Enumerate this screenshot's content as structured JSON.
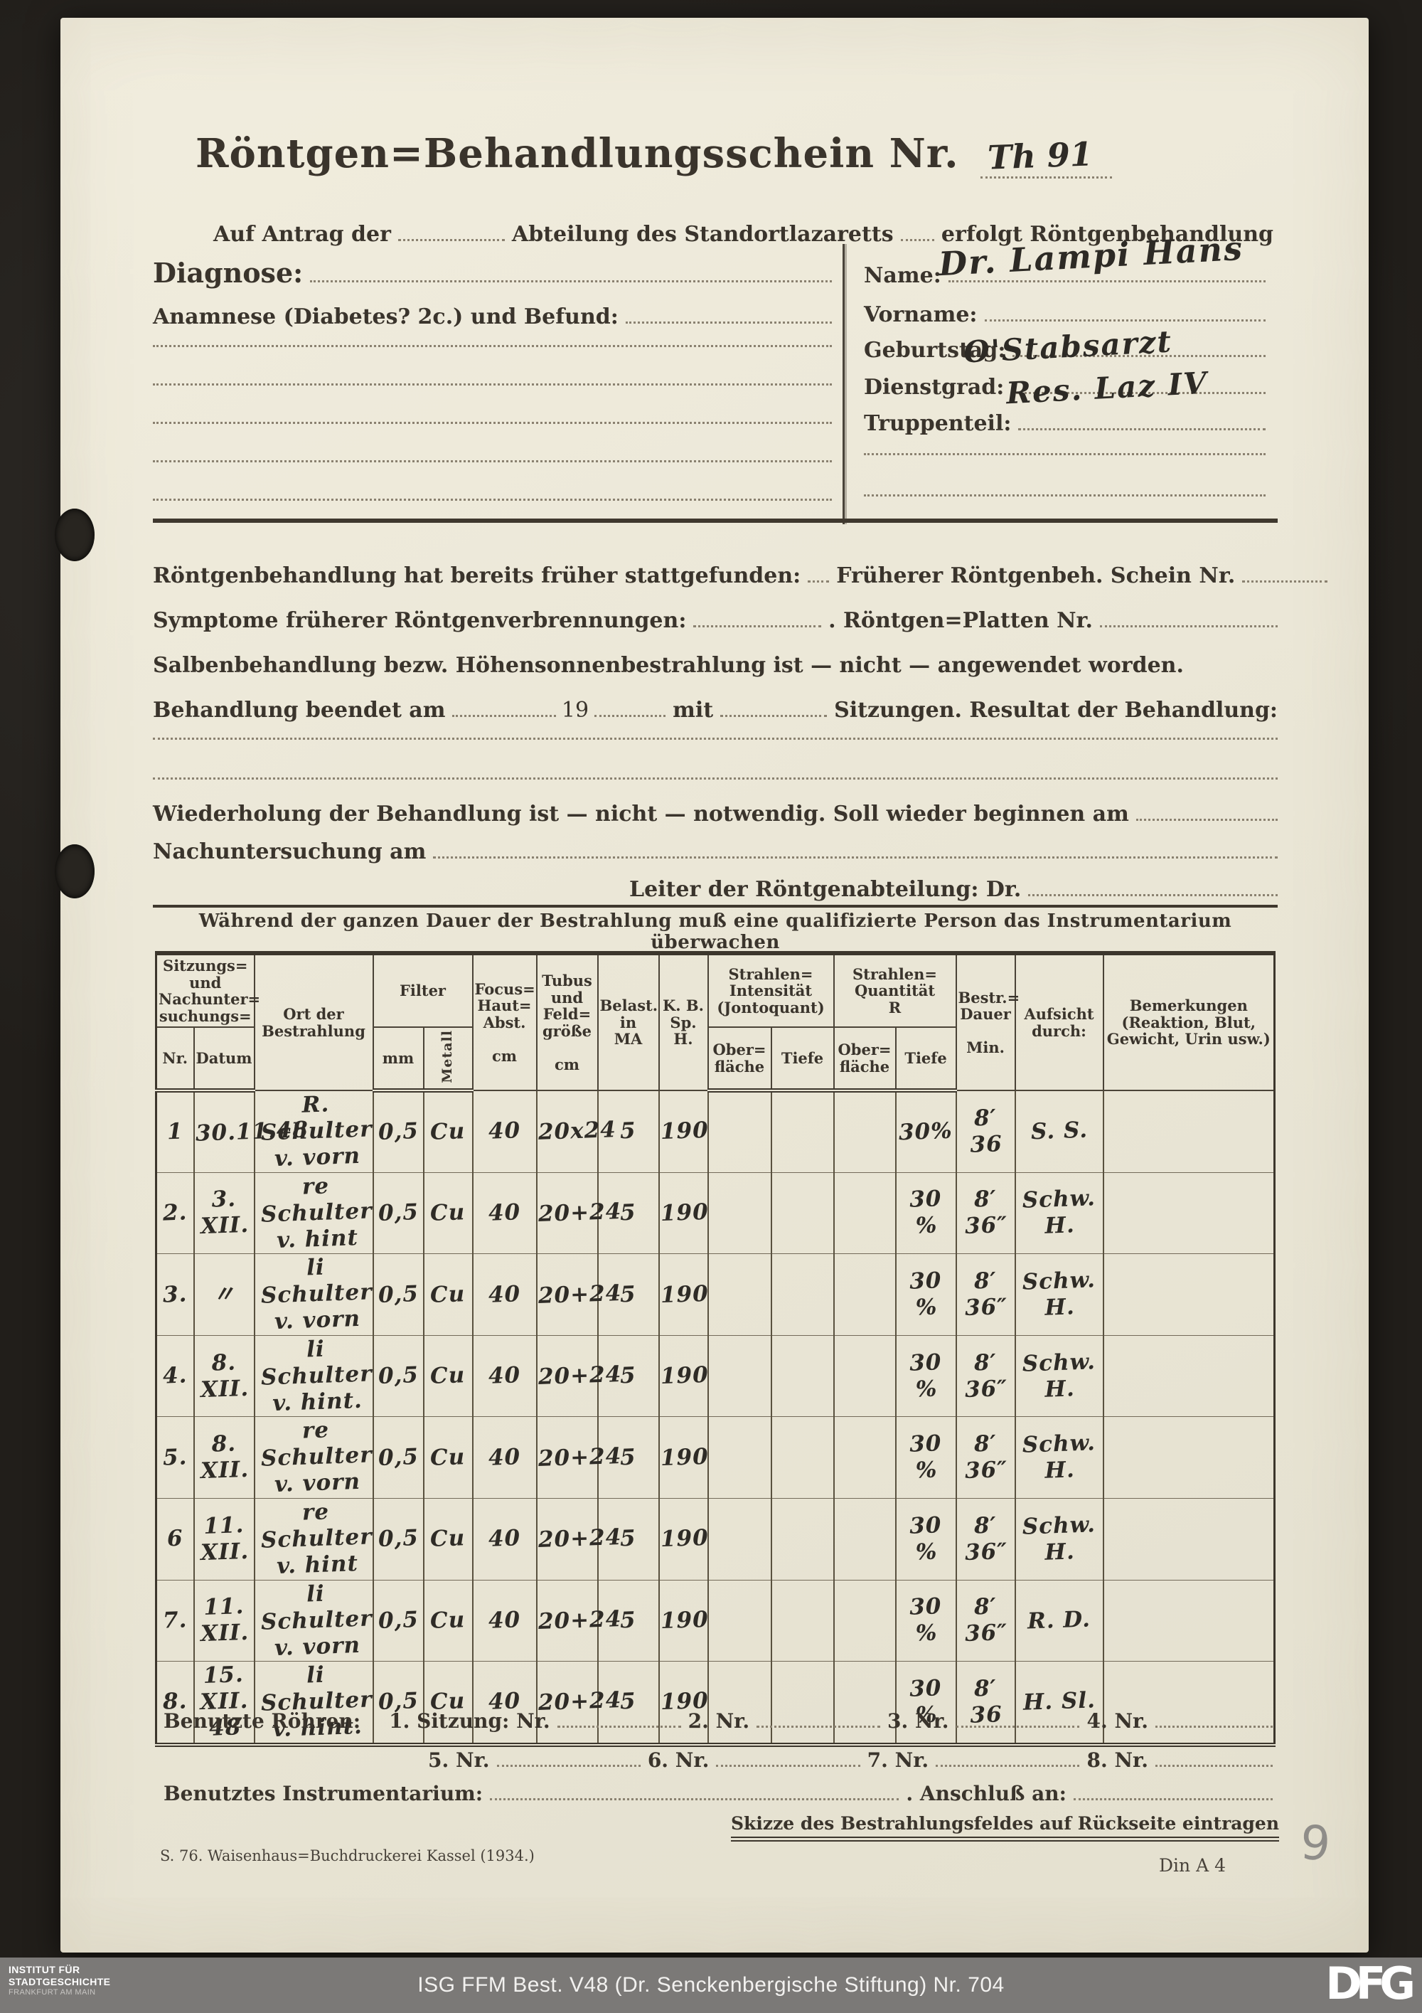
{
  "form": {
    "title": "Röntgen=Behandlungsschein Nr.",
    "title_number_hw": "Th 91",
    "intro": {
      "left1": "Auf Antrag der",
      "left2": "Abteilung des Standortlazaretts",
      "right": "erfolgt Röntgenbehandlung"
    },
    "diagnose_label": "Diagnose:",
    "anamnese_label": "Anamnese (Diabetes? 2c.) und Befund:",
    "patient": {
      "name_label": "Name:",
      "name_value": "Dr. Lampi Hans",
      "vorname_label": "Vorname:",
      "vorname_value": "",
      "geburtstag_label": "Geburtstag:",
      "geburtstag_value": "",
      "dienstgrad_label": "Dienstgrad:",
      "dienstgrad_value": "O'Stabsarzt",
      "truppenteil_label": "Truppenteil:",
      "truppenteil_value": "Res. Laz IV"
    },
    "history": {
      "line1_left": "Röntgenbehandlung hat bereits früher stattgefunden:",
      "line1_right": "Früherer Röntgenbeh. Schein Nr.",
      "line2_left": "Symptome früherer Röntgenverbrennungen:",
      "line2_right": ". Röntgen=Platten Nr.",
      "line3": "Salbenbehandlung bezw. Höhensonnenbestrahlung ist — nicht — angewendet worden.",
      "line4_a": "Behandlung beendet am",
      "line4_b": "19",
      "line4_c": "mit",
      "line4_d": "Sitzungen. Resultat der Behandlung:",
      "line5": "Wiederholung der Behandlung ist — nicht — notwendig. Soll wieder beginnen am",
      "line6": "Nachuntersuchung am",
      "line7": "Leiter der Röntgenabteilung: Dr."
    },
    "table_notice": "Während der ganzen Dauer der Bestrahlung muß eine qualifizierte Person das Instrumentarium überwachen",
    "table": {
      "header": {
        "sessions_group": [
          "Sitzungs=",
          "und",
          "Nachunter=",
          "suchungs="
        ],
        "sub_nr": "Nr.",
        "sub_datum": "Datum",
        "ort": [
          "Ort der",
          "Bestrahlung"
        ],
        "filter": "Filter",
        "filter_mm": "mm",
        "filter_metall": "Metall",
        "focus": [
          "Focus=",
          "Haut=",
          "Abst.",
          "",
          "cm"
        ],
        "tubus": [
          "Tubus",
          "und",
          "Feld=",
          "größe",
          "",
          "cm"
        ],
        "belast": [
          "Belast.",
          "in",
          "MA"
        ],
        "kv": [
          "K. B.",
          "Sp. H."
        ],
        "intensity_group": [
          "Strahlen=",
          "Intensität",
          "(Jontoquant)"
        ],
        "quantity_group": [
          "Strahlen=",
          "Quantität",
          "R"
        ],
        "si_ober": [
          "Ober=",
          "fläche"
        ],
        "si_tiefe": "Tiefe",
        "sq_ober": [
          "Ober=",
          "fläche"
        ],
        "sq_tiefe": "Tiefe",
        "dauer": [
          "Bestr.=",
          "Dauer",
          "",
          "Min."
        ],
        "aufsicht": [
          "Aufsicht",
          "durch:"
        ],
        "bemerkungen": [
          "Bemerkungen",
          "(Reaktion, Blut,",
          "Gewicht, Urin usw.)"
        ]
      },
      "rows": [
        {
          "nr": "1",
          "datum": "30.11.48",
          "ort": [
            "R. Schulter",
            "v. vorn"
          ],
          "mm": "0,5",
          "metall": "Cu",
          "focus": "40",
          "tubus": "20x24",
          "belast": "5",
          "kv": "190",
          "si_ober": "",
          "si_tiefe": "",
          "sq_ober": "",
          "sq_tiefe": "30%",
          "dauer": "8′ 36",
          "aufsicht": "S. S.",
          "bemerkungen": ""
        },
        {
          "nr": "2.",
          "datum": "3. XII.",
          "ort": [
            "re Schulter",
            "v. hint"
          ],
          "mm": "0,5",
          "metall": "Cu",
          "focus": "40",
          "tubus": "20+24",
          "belast": "5",
          "kv": "190",
          "si_ober": "",
          "si_tiefe": "",
          "sq_ober": "",
          "sq_tiefe": "30 %",
          "dauer": "8′ 36″",
          "aufsicht": "Schw. H.",
          "bemerkungen": ""
        },
        {
          "nr": "3.",
          "datum": "〃",
          "ort": [
            "li Schulter",
            "v. vorn"
          ],
          "mm": "0,5",
          "metall": "Cu",
          "focus": "40",
          "tubus": "20+24",
          "belast": "5",
          "kv": "190",
          "si_ober": "",
          "si_tiefe": "",
          "sq_ober": "",
          "sq_tiefe": "30 %",
          "dauer": "8′ 36″",
          "aufsicht": "Schw. H.",
          "bemerkungen": ""
        },
        {
          "nr": "4.",
          "datum": "8. XII.",
          "ort": [
            "li Schulter",
            "v. hint."
          ],
          "mm": "0,5",
          "metall": "Cu",
          "focus": "40",
          "tubus": "20+24",
          "belast": "5",
          "kv": "190",
          "si_ober": "",
          "si_tiefe": "",
          "sq_ober": "",
          "sq_tiefe": "30 %",
          "dauer": "8′ 36″",
          "aufsicht": "Schw. H.",
          "bemerkungen": ""
        },
        {
          "nr": "5.",
          "datum": "8. XII.",
          "ort": [
            "re Schulter",
            "v. vorn"
          ],
          "mm": "0,5",
          "metall": "Cu",
          "focus": "40",
          "tubus": "20+24",
          "belast": "5",
          "kv": "190",
          "si_ober": "",
          "si_tiefe": "",
          "sq_ober": "",
          "sq_tiefe": "30 %",
          "dauer": "8′ 36″",
          "aufsicht": "Schw. H.",
          "bemerkungen": ""
        },
        {
          "nr": "6",
          "datum": "11. XII.",
          "ort": [
            "re Schulter",
            "v. hint"
          ],
          "mm": "0,5",
          "metall": "Cu",
          "focus": "40",
          "tubus": "20+24",
          "belast": "5",
          "kv": "190",
          "si_ober": "",
          "si_tiefe": "",
          "sq_ober": "",
          "sq_tiefe": "30 %",
          "dauer": "8′ 36″",
          "aufsicht": "Schw. H.",
          "bemerkungen": ""
        },
        {
          "nr": "7.",
          "datum": "11. XII.",
          "ort": [
            "li Schulter",
            "v. vorn"
          ],
          "mm": "0,5",
          "metall": "Cu",
          "focus": "40",
          "tubus": "20+24",
          "belast": "5",
          "kv": "190",
          "si_ober": "",
          "si_tiefe": "",
          "sq_ober": "",
          "sq_tiefe": "30 %",
          "dauer": "8′ 36″",
          "aufsicht": "R. D.",
          "bemerkungen": ""
        },
        {
          "nr": "8.",
          "datum": "15. XII. 48",
          "ort": [
            "li Schulter",
            "v. hint."
          ],
          "mm": "0,5",
          "metall": "Cu",
          "focus": "40",
          "tubus": "20+24",
          "belast": "5",
          "kv": "190",
          "si_ober": "",
          "si_tiefe": "",
          "sq_ober": "",
          "sq_tiefe": "30 %",
          "dauer": "8′ 36",
          "aufsicht": "H. Sl.",
          "bemerkungen": ""
        }
      ]
    },
    "tubes": {
      "label": "Benutzte Röhren:",
      "s1": "1. Sitzung: Nr.",
      "s2": "2. Nr.",
      "s3": "3. Nr.",
      "s4": "4. Nr.",
      "s5": "5. Nr.",
      "s6": "6. Nr.",
      "s7": "7. Nr.",
      "s8": "8. Nr."
    },
    "instrument_label": "Benutztes Instrumentarium:",
    "anschluss_label": ". Anschluß an:",
    "sketch_note": "Skizze des Bestrahlungsfeldes auf Rückseite eintragen",
    "print_footer_left": "S. 76.  Waisenhaus=Buchdruckerei Kassel (1934.)",
    "print_footer_right": "Din A 4",
    "pencil_note": "9"
  },
  "archive_bar": {
    "logo_line1": "INSTITUT FÜR",
    "logo_line2": "STADTGESCHICHTE",
    "logo_line3": "FRANKFURT AM MAIN",
    "caption": "ISG FFM Best. V48 (Dr. Senckenbergische Stiftung) Nr. 704",
    "dfg_logo": "DFG"
  }
}
